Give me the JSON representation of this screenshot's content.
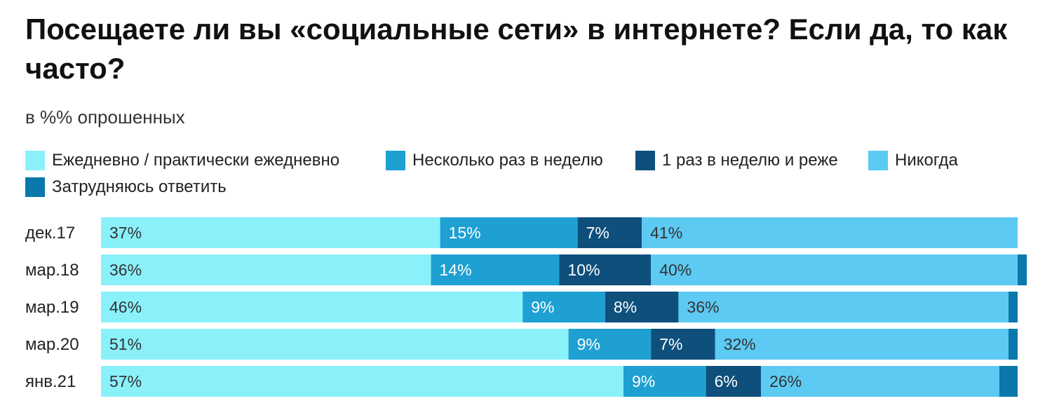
{
  "title": "Посещаете ли вы «социальные сети» в интернете? Если да, то как часто?",
  "subtitle": "в %% опрошенных",
  "chart_data": {
    "type": "bar",
    "orientation": "horizontal",
    "stacked": true,
    "categories": [
      "дек.17",
      "мар.18",
      "мар.19",
      "мар.20",
      "янв.21"
    ],
    "series": [
      {
        "name": "Ежедневно / практически ежедневно",
        "color": "#8af1fb",
        "label_color": "#333333",
        "values": [
          37,
          36,
          46,
          51,
          57
        ]
      },
      {
        "name": "Несколько раз в неделю",
        "color": "#1ea0d2",
        "label_color": "#ffffff",
        "values": [
          15,
          14,
          9,
          9,
          9
        ]
      },
      {
        "name": "1 раз в неделю и реже",
        "color": "#0e4f7c",
        "label_color": "#ffffff",
        "values": [
          7,
          10,
          8,
          7,
          6
        ]
      },
      {
        "name": "Никогда",
        "color": "#5ccaf3",
        "label_color": "#333333",
        "values": [
          41,
          40,
          36,
          32,
          26
        ]
      },
      {
        "name": "Затрудняюсь ответить",
        "color": "#0a78ab",
        "label_color": "#ffffff",
        "values": [
          0,
          1,
          1,
          1,
          2
        ]
      }
    ],
    "value_labels": [
      [
        "37%",
        "15%",
        "7%",
        "41%",
        ""
      ],
      [
        "36%",
        "14%",
        "10%",
        "40%",
        ""
      ],
      [
        "46%",
        "9%",
        "8%",
        "36%",
        ""
      ],
      [
        "51%",
        "9%",
        "7%",
        "32%",
        ""
      ],
      [
        "57%",
        "9%",
        "6%",
        "26%",
        ""
      ]
    ],
    "xlim": [
      0,
      100
    ],
    "grid": false,
    "legend_position": "top"
  }
}
